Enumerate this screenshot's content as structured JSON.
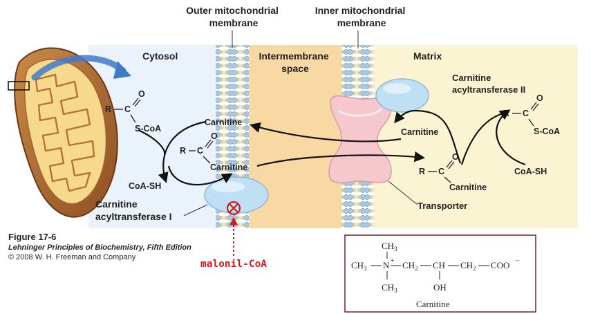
{
  "labels": {
    "outer_membrane": [
      "Outer mitochondrial",
      "membrane"
    ],
    "inner_membrane": [
      "Inner mitochondrial",
      "membrane"
    ],
    "cytosol": "Cytosol",
    "intermembrane": [
      "Intermembrane",
      "space"
    ],
    "matrix": "Matrix",
    "cat2": [
      "Carnitine",
      "acyltransferase II"
    ],
    "cat1": [
      "Carnitine",
      "acyltransferase I"
    ],
    "transporter": "Transporter",
    "inhibitor": "malonil-CoA"
  },
  "chemistry": {
    "R": "R",
    "C": "C",
    "O": "O",
    "SCoA": "S-CoA",
    "CoASH": "CoA-SH",
    "carnitine": "Carnitine"
  },
  "caption": {
    "figure": "Figure 17-6",
    "book": "Lehninger Principles of Biochemistry, Fifth Edition",
    "copyright": "© 2008 W. H. Freeman and Company"
  },
  "structure": {
    "ch3_top": "CH",
    "ch3_top_sub": "3",
    "ch3_left": "CH",
    "ch3_left_sub": "3",
    "N": "N",
    "plus": "+",
    "ch2_a": "CH",
    "ch2_a_sub": "2",
    "ch": "CH",
    "ch2_b": "CH",
    "ch2_b_sub": "2",
    "coo": "COO",
    "minus": "−",
    "ch3_bottom": "CH",
    "ch3_bottom_sub": "3",
    "oh": "OH",
    "title": "Carnitine"
  },
  "colors": {
    "cytosol": "#eaf2fb",
    "intermembrane": "#f9d9a3",
    "matrix": "#fbf4d2",
    "enzyme": "#bfe0f4",
    "transporter": "#f6c7cd",
    "inhibitor": "#d01c1c",
    "box_border": "#7a1f24"
  }
}
